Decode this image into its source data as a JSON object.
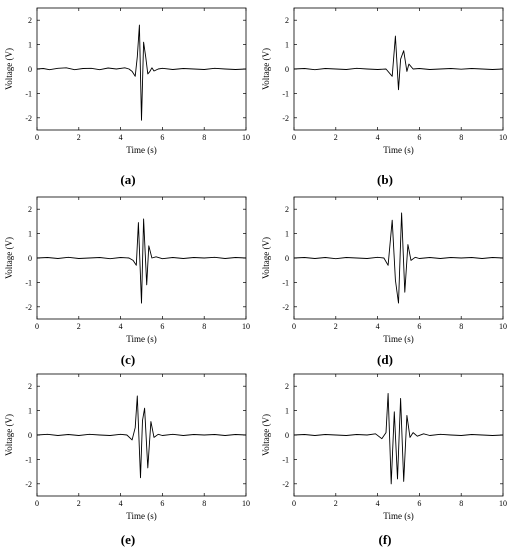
{
  "chart_data": [
    {
      "panel": "(a)",
      "type": "line",
      "xlabel": "Time (s)",
      "ylabel": "Voltage (V)",
      "xlim": [
        0,
        10
      ],
      "ylim": [
        -2.5,
        2.5
      ],
      "xticks": [
        "0",
        "2",
        "4",
        "6",
        "8",
        "10"
      ],
      "yticks": [
        "-2",
        "-1",
        "0",
        "1",
        "2"
      ],
      "series": [
        {
          "x": [
            0,
            0.3,
            0.6,
            1.0,
            1.4,
            1.8,
            2.2,
            2.6,
            3.0,
            3.4,
            3.8,
            4.2,
            4.4,
            4.55,
            4.7,
            4.8,
            4.9,
            5.0,
            5.1,
            5.2,
            5.3,
            5.4,
            5.5,
            5.6,
            5.8,
            6.0,
            6.5,
            7.0,
            7.5,
            8.0,
            8.5,
            9.0,
            9.5,
            10.0
          ],
          "y": [
            0,
            0.02,
            -0.03,
            0.03,
            0.05,
            -0.03,
            0.02,
            0.03,
            -0.03,
            0.04,
            0.0,
            0.05,
            0.0,
            -0.1,
            -0.3,
            0.5,
            1.8,
            -2.1,
            1.1,
            0.5,
            -0.2,
            -0.1,
            0.05,
            -0.08,
            0.0,
            0.03,
            -0.02,
            0.02,
            0.0,
            -0.02,
            0.03,
            0.0,
            -0.02,
            0.0
          ]
        }
      ]
    },
    {
      "panel": "(b)",
      "type": "line",
      "xlabel": "Time (s)",
      "ylabel": "Voltage (V)",
      "xlim": [
        0,
        10
      ],
      "ylim": [
        -2.5,
        2.5
      ],
      "xticks": [
        "0",
        "2",
        "4",
        "6",
        "8",
        "10"
      ],
      "yticks": [
        "-2",
        "-1",
        "0",
        "1",
        "2"
      ],
      "series": [
        {
          "x": [
            0,
            0.5,
            1.0,
            1.5,
            2.0,
            2.5,
            3.0,
            3.5,
            4.0,
            4.4,
            4.7,
            4.85,
            5.0,
            5.1,
            5.25,
            5.4,
            5.5,
            5.7,
            6.0,
            6.5,
            7.0,
            7.5,
            8.0,
            8.5,
            9.0,
            9.5,
            10.0
          ],
          "y": [
            0,
            0.02,
            -0.03,
            0.02,
            0.0,
            -0.02,
            0.03,
            0.0,
            -0.02,
            0.0,
            -0.3,
            1.35,
            -0.85,
            0.4,
            0.75,
            -0.1,
            0.2,
            0.0,
            0.02,
            -0.02,
            0.0,
            0.02,
            -0.01,
            0.02,
            0.0,
            -0.02,
            0.0
          ]
        }
      ]
    },
    {
      "panel": "(c)",
      "type": "line",
      "xlabel": "Time (s)",
      "ylabel": "Voltage (V)",
      "xlim": [
        0,
        10
      ],
      "ylim": [
        -2.5,
        2.5
      ],
      "xticks": [
        "0",
        "2",
        "4",
        "6",
        "8",
        "10"
      ],
      "yticks": [
        "-2",
        "-1",
        "0",
        "1",
        "2"
      ],
      "series": [
        {
          "x": [
            0,
            0.5,
            1.0,
            1.5,
            2.0,
            2.5,
            3.0,
            3.5,
            4.0,
            4.4,
            4.6,
            4.75,
            4.85,
            5.0,
            5.1,
            5.25,
            5.35,
            5.5,
            5.7,
            6.0,
            6.5,
            7.0,
            7.5,
            8.0,
            8.5,
            9.0,
            9.5,
            10.0
          ],
          "y": [
            0,
            0.02,
            -0.02,
            0.03,
            -0.02,
            0.0,
            0.02,
            -0.03,
            0.02,
            0.0,
            -0.1,
            -0.3,
            1.45,
            -1.85,
            1.6,
            -1.1,
            0.5,
            0.0,
            0.05,
            -0.03,
            0.02,
            -0.02,
            0.02,
            0.0,
            0.03,
            -0.02,
            0.02,
            0.0
          ]
        }
      ]
    },
    {
      "panel": "(d)",
      "type": "line",
      "xlabel": "Time (s)",
      "ylabel": "Voltage (V)",
      "xlim": [
        0,
        10
      ],
      "ylim": [
        -2.5,
        2.5
      ],
      "xticks": [
        "0",
        "2",
        "4",
        "6",
        "8",
        "10"
      ],
      "yticks": [
        "-2",
        "-1",
        "0",
        "1",
        "2"
      ],
      "series": [
        {
          "x": [
            0,
            0.5,
            1.0,
            1.5,
            2.0,
            2.5,
            3.0,
            3.5,
            4.0,
            4.3,
            4.5,
            4.7,
            4.85,
            5.0,
            5.15,
            5.3,
            5.45,
            5.6,
            5.8,
            6.0,
            6.5,
            7.0,
            7.5,
            8.0,
            8.5,
            9.0,
            9.5,
            10.0
          ],
          "y": [
            0,
            0.02,
            -0.02,
            0.02,
            -0.03,
            0.02,
            0.0,
            -0.02,
            0.03,
            0.0,
            -0.3,
            1.55,
            -0.9,
            -1.85,
            1.85,
            -1.4,
            0.55,
            -0.1,
            0.03,
            -0.02,
            0.02,
            -0.02,
            0.02,
            0.0,
            0.02,
            -0.02,
            0.02,
            0.0
          ]
        }
      ]
    },
    {
      "panel": "(e)",
      "type": "line",
      "xlabel": "Time (s)",
      "ylabel": "Voltage (V)",
      "xlim": [
        0,
        10
      ],
      "ylim": [
        -2.5,
        2.5
      ],
      "xticks": [
        "0",
        "2",
        "4",
        "6",
        "8",
        "10"
      ],
      "yticks": [
        "-2",
        "-1",
        "0",
        "1",
        "2"
      ],
      "series": [
        {
          "x": [
            0,
            0.5,
            1.0,
            1.5,
            2.0,
            2.5,
            3.0,
            3.5,
            4.0,
            4.3,
            4.55,
            4.7,
            4.8,
            4.95,
            5.05,
            5.15,
            5.3,
            5.45,
            5.6,
            5.8,
            6.0,
            6.5,
            7.0,
            7.5,
            8.0,
            8.5,
            9.0,
            9.5,
            10.0
          ],
          "y": [
            0,
            0.03,
            -0.02,
            0.02,
            -0.02,
            0.03,
            0.0,
            -0.02,
            0.03,
            0.0,
            -0.2,
            0.3,
            1.6,
            -1.75,
            0.6,
            1.1,
            -1.35,
            0.55,
            -0.1,
            0.03,
            -0.02,
            0.03,
            -0.02,
            0.02,
            0.0,
            0.02,
            -0.02,
            0.02,
            0.0
          ]
        }
      ]
    },
    {
      "panel": "(f)",
      "type": "line",
      "xlabel": "Time (s)",
      "ylabel": "Voltage (V)",
      "xlim": [
        0,
        10
      ],
      "ylim": [
        -2.5,
        2.5
      ],
      "xticks": [
        "0",
        "2",
        "4",
        "6",
        "8",
        "10"
      ],
      "yticks": [
        "-2",
        "-1",
        "0",
        "1",
        "2"
      ],
      "series": [
        {
          "x": [
            0,
            0.5,
            1.0,
            1.5,
            2.0,
            2.5,
            3.0,
            3.5,
            3.9,
            4.2,
            4.4,
            4.5,
            4.65,
            4.8,
            4.95,
            5.1,
            5.25,
            5.4,
            5.55,
            5.7,
            5.9,
            6.2,
            6.5,
            7.0,
            7.5,
            8.0,
            8.5,
            9.0,
            9.5,
            10.0
          ],
          "y": [
            0,
            0.02,
            -0.02,
            0.02,
            0.0,
            -0.02,
            0.02,
            0.0,
            0.05,
            -0.15,
            0.1,
            1.7,
            -2.0,
            0.95,
            -1.8,
            1.5,
            -1.9,
            0.8,
            -0.1,
            0.1,
            -0.05,
            0.05,
            -0.02,
            0.03,
            0.0,
            -0.02,
            0.02,
            0.0,
            -0.02,
            0.0
          ]
        }
      ]
    }
  ]
}
